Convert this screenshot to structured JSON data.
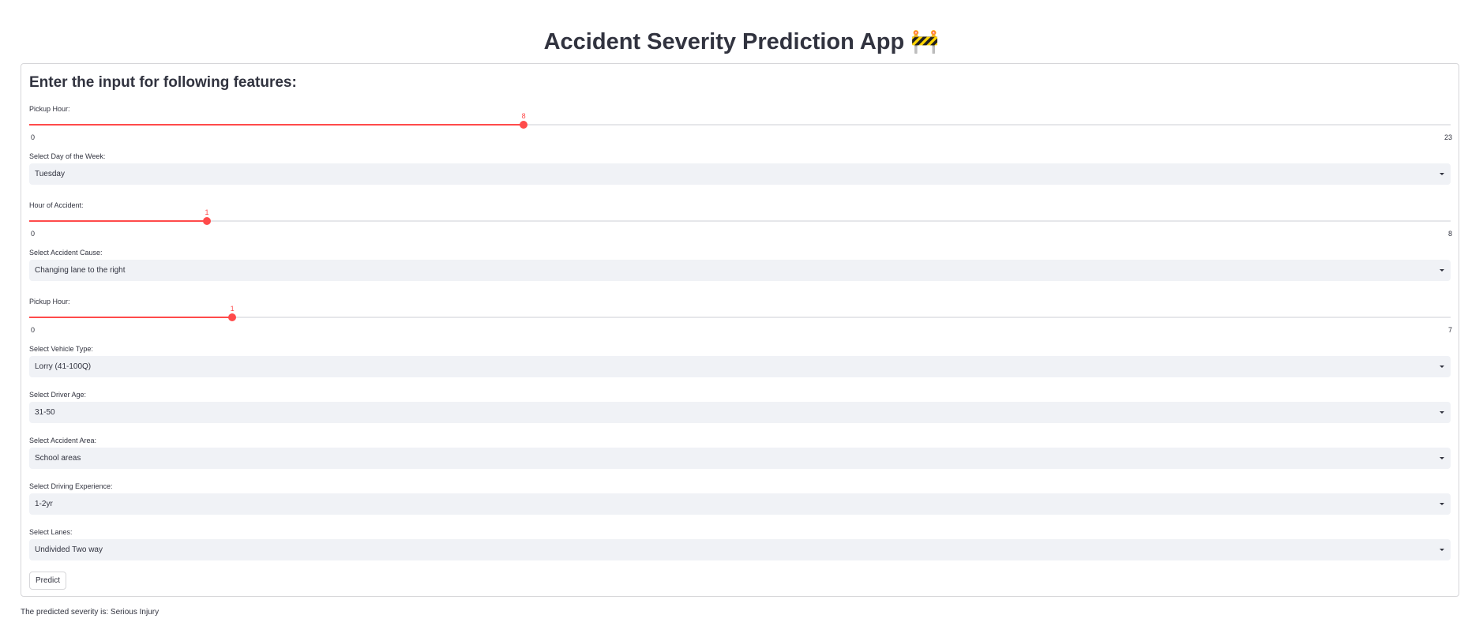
{
  "app": {
    "title": "Accident Severity Prediction App 🚧"
  },
  "form": {
    "heading": "Enter the input for following features:",
    "fields": [
      {
        "type": "slider",
        "label": "Pickup Hour:",
        "value": 8,
        "min": 0,
        "max": 23,
        "value_label": "8",
        "min_label": "0",
        "max_label": "23"
      },
      {
        "type": "select",
        "label": "Select Day of the Week:",
        "value": "Tuesday"
      },
      {
        "type": "slider",
        "label": "Hour of Accident:",
        "value": 1,
        "min": 0,
        "max": 8,
        "value_label": "1",
        "min_label": "0",
        "max_label": "8"
      },
      {
        "type": "select",
        "label": "Select Accident Cause:",
        "value": "Changing lane to the right"
      },
      {
        "type": "slider",
        "label": "Pickup Hour:",
        "value": 1,
        "min": 0,
        "max": 7,
        "value_label": "1",
        "min_label": "0",
        "max_label": "7"
      },
      {
        "type": "select",
        "label": "Select Vehicle Type:",
        "value": "Lorry (41-100Q)"
      },
      {
        "type": "select",
        "label": "Select Driver Age:",
        "value": "31-50"
      },
      {
        "type": "select",
        "label": "Select Accident Area:",
        "value": "School areas"
      },
      {
        "type": "select",
        "label": "Select Driving Experience:",
        "value": "1-2yr"
      },
      {
        "type": "select",
        "label": "Select Lanes:",
        "value": "Undivided Two way"
      }
    ],
    "predict_label": "Predict"
  },
  "result": {
    "text": "The predicted severity is: Serious Injury"
  },
  "colors": {
    "accent": "#ff4b4b",
    "select_bg": "#f0f2f6",
    "text": "#31333f",
    "border": "#d6d6d9"
  },
  "icons": {
    "dropdown": "chevron-down-icon"
  }
}
